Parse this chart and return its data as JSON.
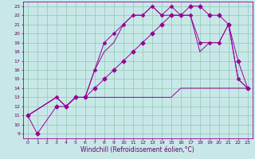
{
  "xlabel": "Windchill (Refroidissement éolien,°C)",
  "bg_color": "#c8e8e8",
  "grid_color": "#99ccbb",
  "line_color": "#990099",
  "xlim": [
    -0.5,
    23.5
  ],
  "ylim": [
    8.5,
    23.5
  ],
  "xticks": [
    0,
    1,
    2,
    3,
    4,
    5,
    6,
    7,
    8,
    9,
    10,
    11,
    12,
    13,
    14,
    15,
    16,
    17,
    18,
    19,
    20,
    21,
    22,
    23
  ],
  "yticks": [
    9,
    10,
    11,
    12,
    13,
    14,
    15,
    16,
    17,
    18,
    19,
    20,
    21,
    22,
    23
  ],
  "lines": [
    {
      "x": [
        0,
        1,
        3,
        4,
        5,
        6,
        7,
        8,
        9,
        10,
        11,
        12,
        13,
        14,
        15,
        16,
        17,
        18,
        19,
        20,
        21,
        22,
        23
      ],
      "y": [
        11,
        9,
        12,
        12,
        13,
        13,
        14,
        15,
        16,
        17,
        18,
        19,
        20,
        21,
        22,
        22,
        23,
        23,
        22,
        22,
        21,
        17,
        14
      ],
      "marker": "D",
      "markersize": 2.5
    },
    {
      "x": [
        0,
        3,
        4,
        5,
        6,
        7,
        8,
        9,
        10,
        11,
        12,
        13,
        14,
        15,
        16,
        17,
        18,
        19,
        20,
        21,
        22,
        23
      ],
      "y": [
        11,
        13,
        12,
        13,
        13,
        16,
        19,
        20,
        21,
        22,
        22,
        23,
        22,
        23,
        22,
        22,
        19,
        19,
        19,
        21,
        15,
        14
      ],
      "marker": "P",
      "markersize": 2.5
    },
    {
      "x": [
        0,
        3,
        4,
        5,
        6,
        7,
        8,
        9,
        10,
        11,
        12,
        13,
        14,
        15,
        16,
        17,
        18,
        19,
        20,
        21,
        22,
        23
      ],
      "y": [
        11,
        13,
        12,
        13,
        13,
        16,
        18,
        19,
        21,
        22,
        22,
        23,
        22,
        22,
        22,
        22,
        18,
        19,
        19,
        21,
        15,
        14
      ],
      "marker": null,
      "markersize": 0
    },
    {
      "x": [
        0,
        3,
        4,
        5,
        6,
        7,
        8,
        9,
        10,
        11,
        12,
        13,
        14,
        15,
        16,
        17,
        18,
        19,
        20,
        21,
        22,
        23
      ],
      "y": [
        11,
        13,
        12,
        13,
        13,
        13,
        13,
        13,
        13,
        13,
        13,
        13,
        13,
        13,
        14,
        14,
        14,
        14,
        14,
        14,
        14,
        14
      ],
      "marker": null,
      "markersize": 0
    }
  ],
  "tick_color": "#660066",
  "label_color": "#660066",
  "tick_fontsize": 4.5,
  "label_fontsize": 5.5
}
